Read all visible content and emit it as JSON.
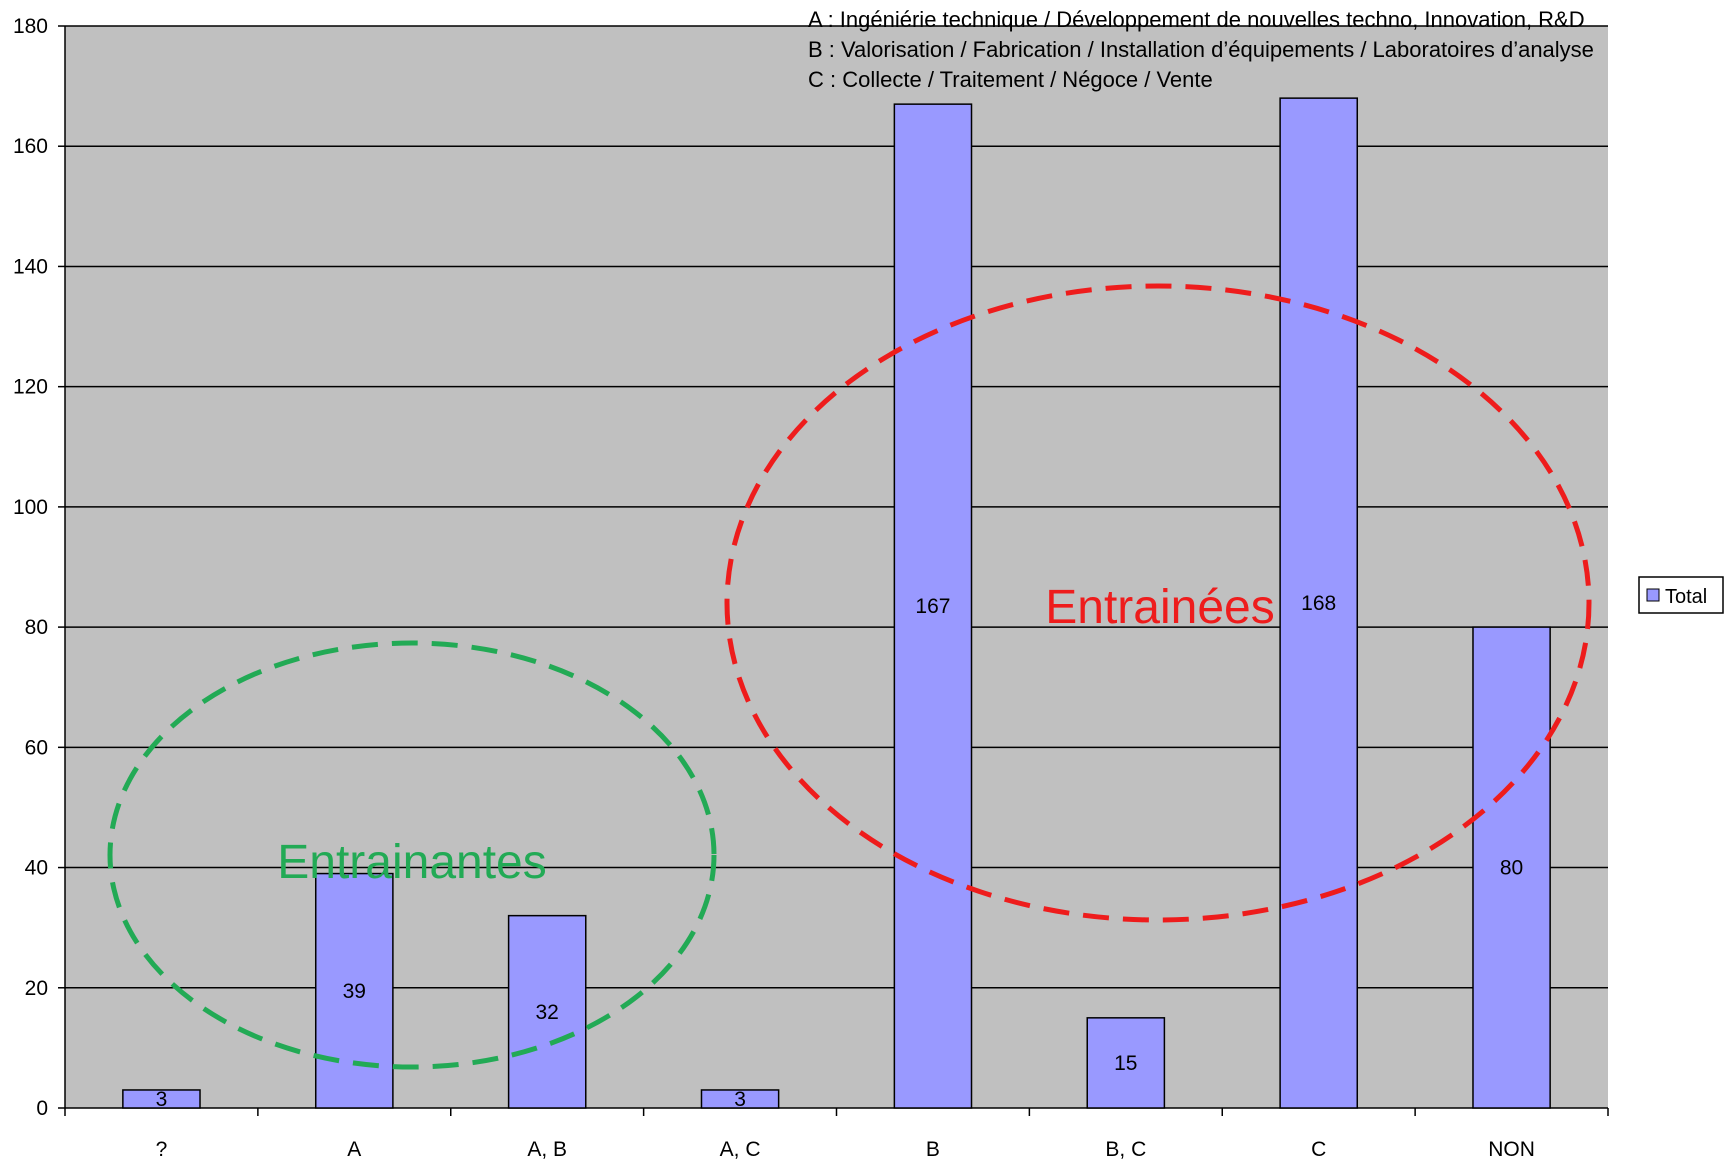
{
  "chart_data": {
    "type": "bar",
    "categories": [
      "?",
      "A",
      "A, B",
      "A, C",
      "B",
      "B, C",
      "C",
      "NON"
    ],
    "series": [
      {
        "name": "Total",
        "values": [
          3,
          39,
          32,
          3,
          167,
          15,
          168,
          80
        ]
      }
    ],
    "ylim": [
      0,
      180
    ],
    "yticks": [
      0,
      20,
      40,
      60,
      80,
      100,
      120,
      140,
      160,
      180
    ],
    "grid": true,
    "legend_position": "right",
    "colors": {
      "plot_bg": "#C0C0C0",
      "bar_fill": "#9999FF",
      "bar_stroke": "#000000",
      "group1": "#22AA55",
      "group2": "#EE1C1C"
    },
    "annotations": {
      "notes": [
        "A : Ingéniérie technique / Développement de nouvelles techno, Innovation, R&D",
        "B : Valorisation / Fabrication / Installation d’équipements / Laboratoires d’analyse",
        "C : Collecte / Traitement  / Négoce / Vente"
      ],
      "group1_label": "Entrainantes",
      "group2_label": "Entrainées"
    }
  }
}
